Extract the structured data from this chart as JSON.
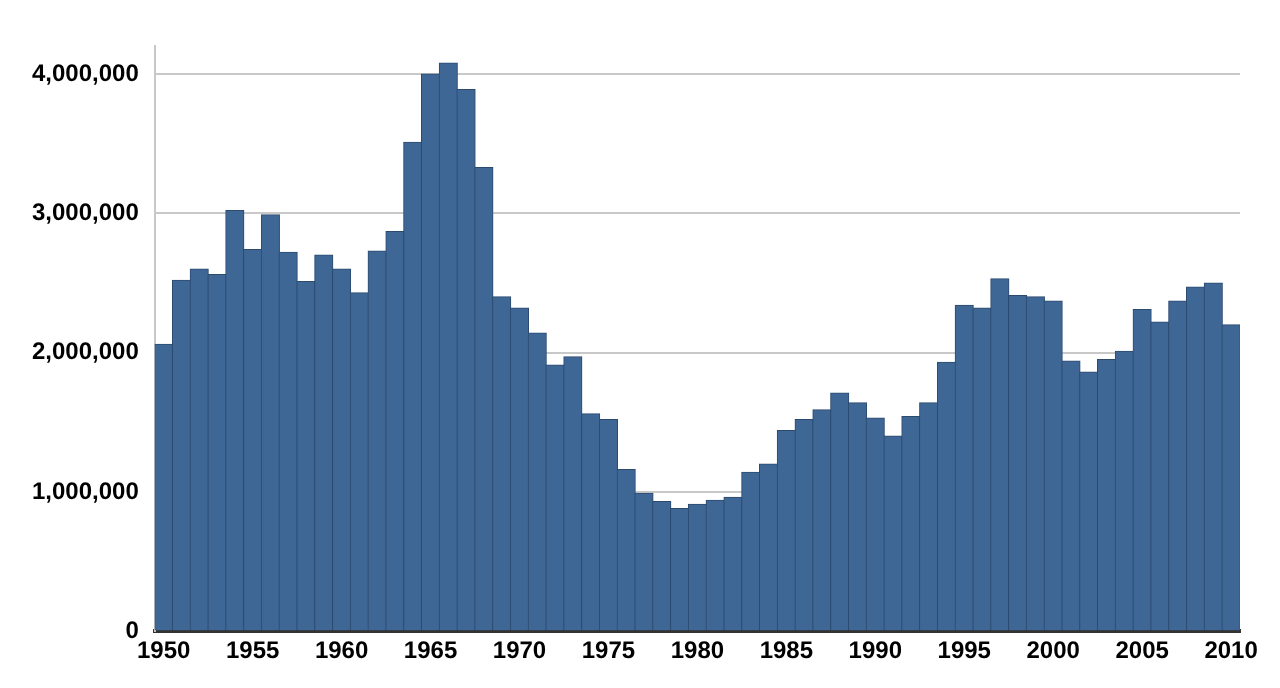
{
  "chart_data": {
    "type": "bar",
    "categories": [
      "1950",
      null,
      null,
      null,
      null,
      "1955",
      null,
      null,
      null,
      null,
      "1960",
      null,
      null,
      null,
      null,
      "1965",
      null,
      null,
      null,
      null,
      "1970",
      null,
      null,
      null,
      null,
      "1975",
      null,
      null,
      null,
      null,
      "1980",
      null,
      null,
      null,
      null,
      "1985",
      null,
      null,
      null,
      null,
      "1990",
      null,
      null,
      null,
      null,
      "1995",
      null,
      null,
      null,
      null,
      "2000",
      null,
      null,
      null,
      null,
      "2005",
      null,
      null,
      null,
      null,
      "2010"
    ],
    "values": [
      2060000,
      2520000,
      2600000,
      2560000,
      3020000,
      2740000,
      2990000,
      2720000,
      2510000,
      2700000,
      2600000,
      2430000,
      2730000,
      2870000,
      3510000,
      4000000,
      4080000,
      3890000,
      3330000,
      2400000,
      2320000,
      2140000,
      1910000,
      1970000,
      1560000,
      1520000,
      1160000,
      990000,
      930000,
      880000,
      910000,
      940000,
      960000,
      1140000,
      1200000,
      1440000,
      1520000,
      1590000,
      1710000,
      1640000,
      1530000,
      1400000,
      1540000,
      1640000,
      1930000,
      2340000,
      2320000,
      2530000,
      2410000,
      2400000,
      2370000,
      1940000,
      1860000,
      1950000,
      2010000,
      2310000,
      2220000,
      2370000,
      2470000,
      2500000,
      2200000
    ],
    "color": "#3e6796",
    "ylim": [
      0,
      4200000
    ],
    "yticks": [
      0,
      {
        "value": 1000000,
        "label": "1,000,000"
      },
      {
        "value": 2000000,
        "label": "2,000,000"
      },
      {
        "value": 3000000,
        "label": "3,000,000"
      },
      {
        "value": 4000000,
        "label": "4,000,000"
      }
    ],
    "grid": "y"
  }
}
